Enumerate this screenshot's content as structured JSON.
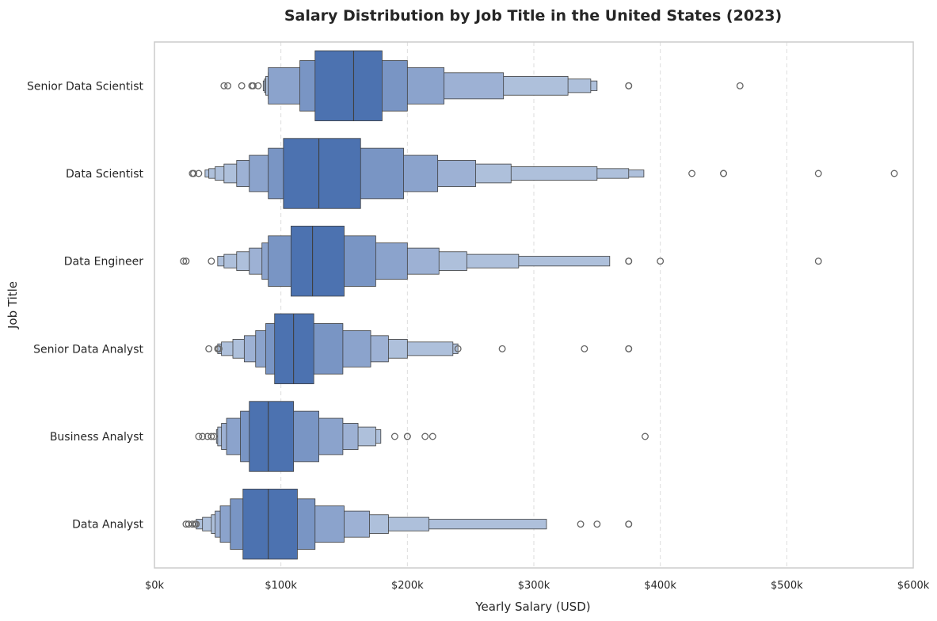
{
  "chart_data": {
    "type": "boxen",
    "title": "Salary Distribution by Job Title in the United States (2023)",
    "xlabel": "Yearly Salary (USD)",
    "ylabel": "Job Title",
    "xlim": [
      0,
      600000
    ],
    "x_ticks": [
      0,
      100000,
      200000,
      300000,
      400000,
      500000,
      600000
    ],
    "x_tick_labels": [
      "$0k",
      "$100k",
      "$200k",
      "$300k",
      "$400k",
      "$500k",
      "$600k"
    ],
    "grid": "x dashed",
    "colors": {
      "box": "#4c72b0",
      "edge": "#3f3f3f",
      "grid": "#dddddd",
      "frame": "#cccccc",
      "outlier": "#666666"
    },
    "categories": [
      "Senior Data Scientist",
      "Data Scientist",
      "Data Engineer",
      "Senior Data Analyst",
      "Business Analyst",
      "Data Analyst"
    ],
    "series": [
      {
        "category": "Senior Data Scientist",
        "median": 157500,
        "levels": [
          [
            127000,
            180000
          ],
          [
            115000,
            200000
          ],
          [
            90000,
            229000
          ],
          [
            90000,
            276000
          ],
          [
            88000,
            327000
          ],
          [
            87000,
            345000
          ],
          [
            86000,
            350000
          ]
        ],
        "outliers": [
          55000,
          58000,
          69000,
          77000,
          78000,
          82000,
          375000,
          375000,
          463000
        ]
      },
      {
        "category": "Data Scientist",
        "median": 130000,
        "levels": [
          [
            102000,
            163000
          ],
          [
            90000,
            197000
          ],
          [
            75000,
            224000
          ],
          [
            65000,
            254000
          ],
          [
            55000,
            282000
          ],
          [
            48000,
            350000
          ],
          [
            43000,
            375000
          ],
          [
            40000,
            387000
          ]
        ],
        "outliers": [
          30000,
          31000,
          35000,
          425000,
          450000,
          450000,
          525000,
          585000
        ]
      },
      {
        "category": "Data Engineer",
        "median": 125000,
        "levels": [
          [
            108000,
            150000
          ],
          [
            90000,
            175000
          ],
          [
            85000,
            200000
          ],
          [
            75000,
            225000
          ],
          [
            65000,
            247000
          ],
          [
            55000,
            288000
          ],
          [
            50000,
            360000
          ]
        ],
        "outliers": [
          23000,
          25000,
          45000,
          375000,
          375000,
          400000,
          525000
        ]
      },
      {
        "category": "Senior Data Analyst",
        "median": 110000,
        "levels": [
          [
            95000,
            126000
          ],
          [
            88000,
            149000
          ],
          [
            80000,
            171000
          ],
          [
            71000,
            185000
          ],
          [
            62000,
            200000
          ],
          [
            53000,
            236000
          ],
          [
            50000,
            240000
          ]
        ],
        "outliers": [
          43000,
          50000,
          51000,
          240000,
          275000,
          340000,
          375000,
          375000
        ]
      },
      {
        "category": "Business Analyst",
        "median": 90000,
        "levels": [
          [
            75000,
            110000
          ],
          [
            68000,
            130000
          ],
          [
            57000,
            149000
          ],
          [
            53000,
            161000
          ],
          [
            50000,
            175000
          ],
          [
            49000,
            179000
          ]
        ],
        "outliers": [
          35000,
          38000,
          42000,
          45000,
          47000,
          190000,
          200000,
          200000,
          214000,
          220000,
          388000
        ]
      },
      {
        "category": "Data Analyst",
        "median": 90000,
        "levels": [
          [
            70000,
            113000
          ],
          [
            60000,
            127000
          ],
          [
            52000,
            150000
          ],
          [
            48000,
            170000
          ],
          [
            45000,
            185000
          ],
          [
            38000,
            217000
          ],
          [
            33000,
            310000
          ]
        ],
        "outliers": [
          25000,
          27000,
          30000,
          32000,
          33000,
          337000,
          350000,
          375000,
          375000
        ]
      }
    ]
  }
}
